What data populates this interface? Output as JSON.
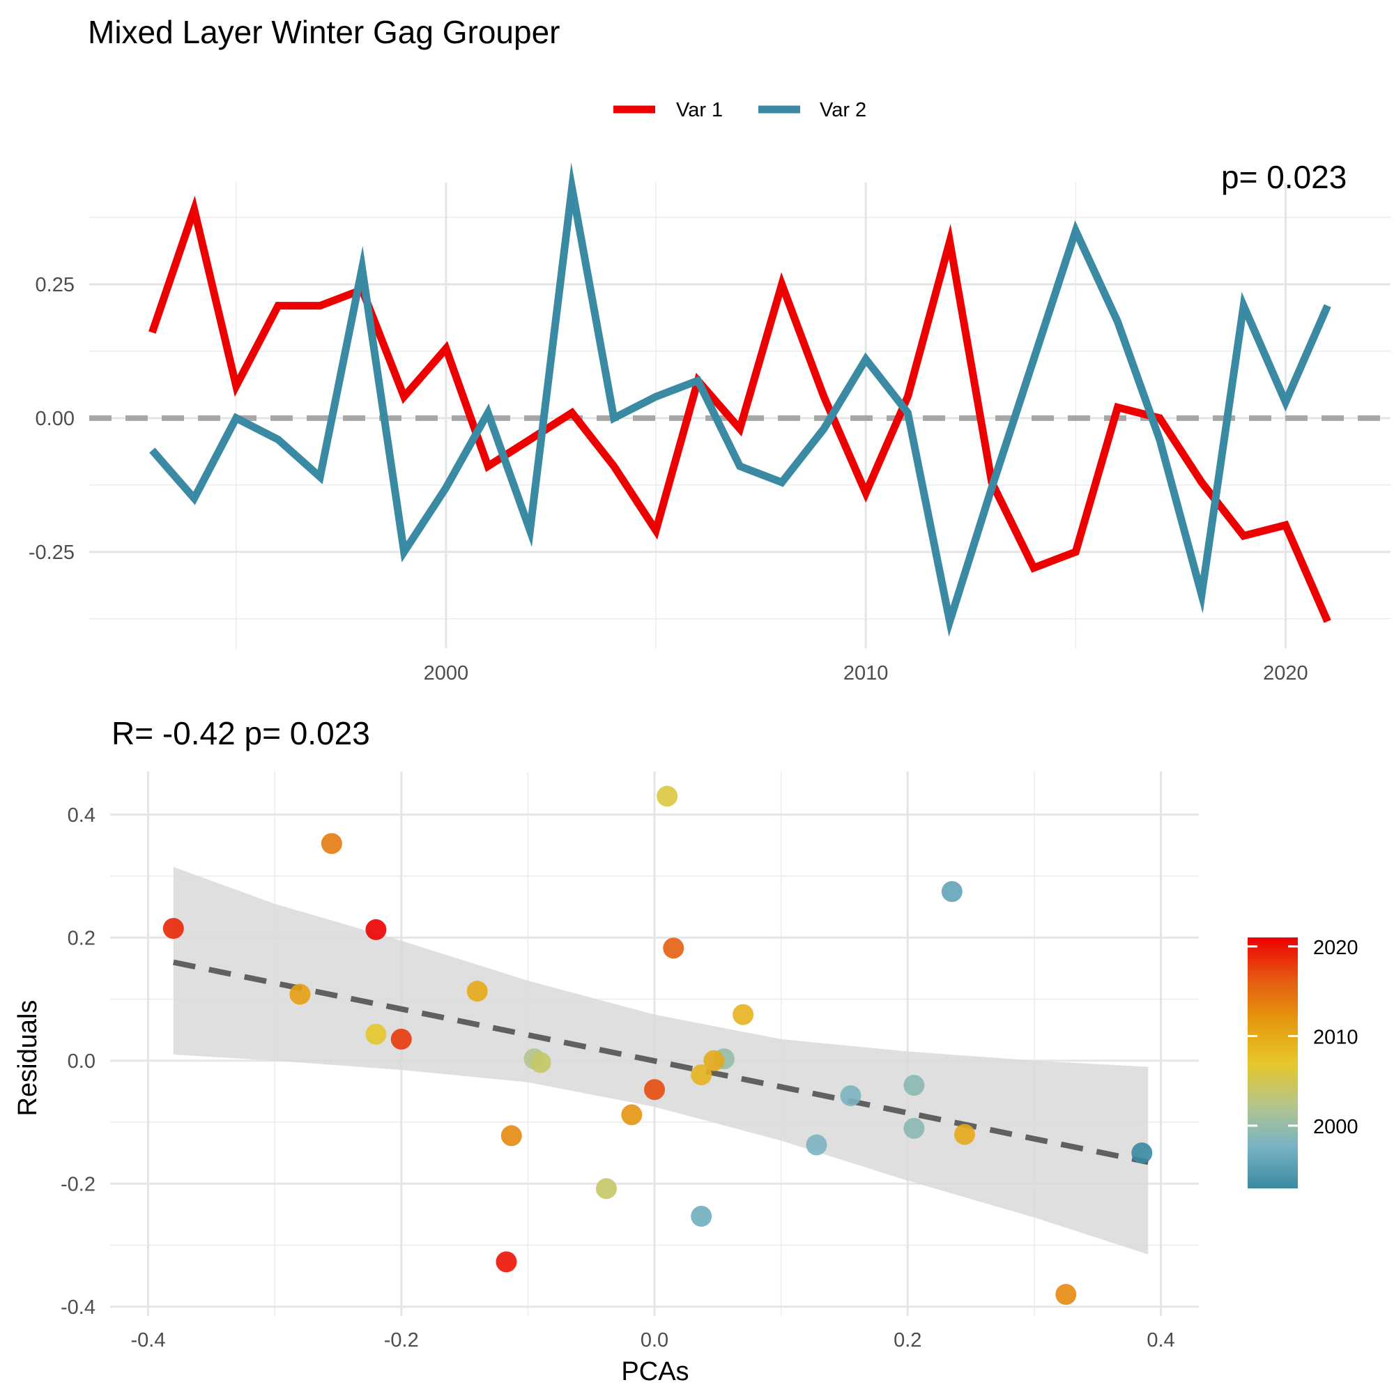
{
  "figure": {
    "title": "Mixed Layer Winter Gag Grouper",
    "colors": {
      "var1": "#ee0000",
      "var2": "#3a8aa3",
      "zero_line": "#a6a6a6",
      "fit_line": "#606060",
      "ci_band": "#d9d9d9"
    }
  },
  "chart_data": [
    {
      "type": "line",
      "title": "",
      "xlabel": "",
      "ylabel": "",
      "legend": {
        "position": "top",
        "entries": [
          "Var 1",
          "Var 2"
        ]
      },
      "xlim": [
        1991.5,
        2022.5
      ],
      "ylim": [
        -0.43,
        0.44
      ],
      "x_ticks": [
        2000,
        2010,
        2020
      ],
      "y_ticks": [
        -0.25,
        0.0,
        0.25
      ],
      "x_tick_labels": [
        "2000",
        "2010",
        "2020"
      ],
      "y_tick_labels": [
        "-0.25",
        "0.00",
        "0.25"
      ],
      "grid": true,
      "zero_line": {
        "y": 0,
        "style": "dashed"
      },
      "corner_annotation": "p= 0.023",
      "x": [
        1993,
        1994,
        1995,
        1996,
        1997,
        1998,
        1999,
        2000,
        2001,
        2002,
        2003,
        2004,
        2005,
        2006,
        2007,
        2008,
        2009,
        2010,
        2011,
        2012,
        2013,
        2014,
        2015,
        2016,
        2017,
        2018,
        2019,
        2020,
        2021
      ],
      "series": [
        {
          "name": "Var 1",
          "color": "#ee0000",
          "values": [
            0.16,
            0.39,
            0.06,
            0.21,
            0.21,
            0.24,
            0.04,
            0.13,
            -0.09,
            -0.04,
            0.01,
            -0.09,
            -0.21,
            0.07,
            -0.02,
            0.25,
            0.04,
            -0.14,
            0.04,
            0.33,
            -0.12,
            -0.28,
            -0.25,
            0.02,
            0.0,
            -0.12,
            -0.22,
            -0.2,
            -0.38
          ]
        },
        {
          "name": "Var 2",
          "color": "#3a8aa3",
          "values": [
            -0.06,
            -0.15,
            0.0,
            -0.04,
            -0.11,
            0.28,
            -0.25,
            -0.13,
            0.01,
            -0.21,
            0.43,
            0.0,
            0.04,
            0.07,
            -0.09,
            -0.12,
            -0.02,
            0.11,
            0.01,
            -0.38,
            -0.13,
            0.11,
            0.35,
            0.18,
            -0.04,
            -0.33,
            0.21,
            0.03,
            0.21
          ]
        }
      ]
    },
    {
      "type": "scatter",
      "title": "R= -0.42  p= 0.023",
      "xlabel": "PCAs",
      "ylabel": "Residuals",
      "xlim": [
        -0.43,
        0.43
      ],
      "ylim": [
        -0.415,
        0.47
      ],
      "x_ticks": [
        -0.4,
        -0.2,
        0.0,
        0.2,
        0.4
      ],
      "y_ticks": [
        -0.4,
        -0.2,
        0.0,
        0.2,
        0.4
      ],
      "x_tick_labels": [
        "-0.4",
        "-0.2",
        "0.0",
        "0.2",
        "0.4"
      ],
      "y_tick_labels": [
        "-0.4",
        "-0.2",
        "0.0",
        "0.2",
        "0.4"
      ],
      "grid": true,
      "fit": {
        "line": {
          "x": [
            -0.38,
            0.39
          ],
          "y": [
            0.16,
            -0.165
          ],
          "style": "dashed"
        },
        "band": {
          "x": [
            -0.38,
            -0.3,
            -0.2,
            -0.1,
            0.0,
            0.1,
            0.2,
            0.3,
            0.39
          ],
          "upper": [
            0.315,
            0.255,
            0.195,
            0.13,
            0.075,
            0.035,
            0.015,
            0.0,
            -0.01
          ],
          "lower": [
            0.01,
            0.0,
            -0.015,
            -0.035,
            -0.075,
            -0.13,
            -0.195,
            -0.255,
            -0.315
          ]
        }
      },
      "colorbar": {
        "label_values": [
          2000,
          2010,
          2020
        ],
        "labels": [
          "2000",
          "2010",
          "2020"
        ],
        "min": 1993,
        "max": 2021,
        "stops": [
          "#3a8aa3",
          "#78b3c4",
          "#b4c68a",
          "#e6c62a",
          "#e59a10",
          "#e55a10",
          "#ee0000"
        ]
      },
      "points": [
        {
          "x": 0.01,
          "y": 0.43,
          "year": 2006
        },
        {
          "x": -0.255,
          "y": 0.353,
          "year": 2014
        },
        {
          "x": 0.235,
          "y": 0.275,
          "year": 1996
        },
        {
          "x": -0.38,
          "y": 0.215,
          "year": 2019
        },
        {
          "x": -0.22,
          "y": 0.213,
          "year": 2021
        },
        {
          "x": 0.015,
          "y": 0.183,
          "year": 2016
        },
        {
          "x": -0.28,
          "y": 0.108,
          "year": 2011
        },
        {
          "x": -0.14,
          "y": 0.113,
          "year": 2010
        },
        {
          "x": 0.07,
          "y": 0.075,
          "year": 2009
        },
        {
          "x": -0.22,
          "y": 0.043,
          "year": 2007
        },
        {
          "x": -0.2,
          "y": 0.035,
          "year": 2018
        },
        {
          "x": -0.095,
          "y": 0.003,
          "year": 2002
        },
        {
          "x": -0.09,
          "y": -0.003,
          "year": 2004
        },
        {
          "x": 0.055,
          "y": 0.003,
          "year": 2000
        },
        {
          "x": 0.047,
          "y": 0.0,
          "year": 2010
        },
        {
          "x": 0.037,
          "y": -0.023,
          "year": 2009
        },
        {
          "x": 0.0,
          "y": -0.047,
          "year": 2017
        },
        {
          "x": -0.018,
          "y": -0.088,
          "year": 2012
        },
        {
          "x": 0.155,
          "y": -0.057,
          "year": 1998
        },
        {
          "x": 0.205,
          "y": -0.04,
          "year": 1999
        },
        {
          "x": 0.205,
          "y": -0.11,
          "year": 1999
        },
        {
          "x": 0.245,
          "y": -0.12,
          "year": 2010
        },
        {
          "x": -0.113,
          "y": -0.122,
          "year": 2013
        },
        {
          "x": 0.128,
          "y": -0.137,
          "year": 1998
        },
        {
          "x": 0.385,
          "y": -0.15,
          "year": 1993
        },
        {
          "x": -0.038,
          "y": -0.208,
          "year": 2004
        },
        {
          "x": 0.037,
          "y": -0.253,
          "year": 1997
        },
        {
          "x": -0.117,
          "y": -0.327,
          "year": 2020
        },
        {
          "x": 0.325,
          "y": -0.38,
          "year": 2013
        }
      ]
    }
  ]
}
